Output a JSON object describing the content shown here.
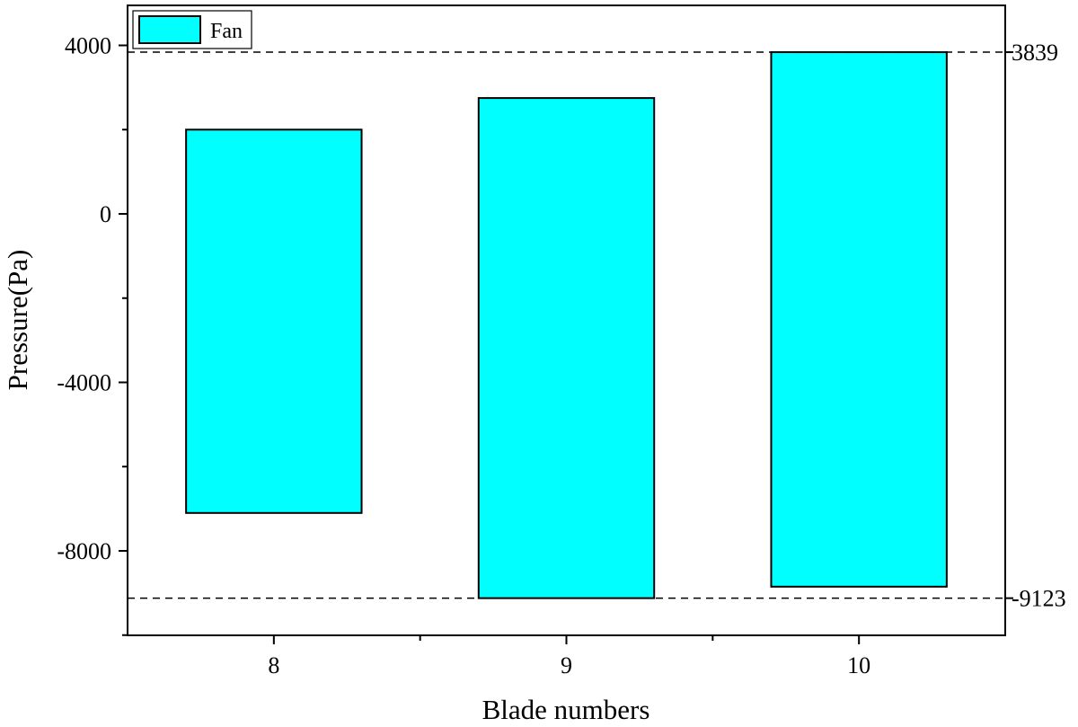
{
  "chart_data": {
    "type": "bar",
    "subtype": "floating-range",
    "categories": [
      "8",
      "9",
      "10"
    ],
    "series": [
      {
        "name": "Fan",
        "color": "#00FFFF",
        "ranges": [
          {
            "low": -7100,
            "high": 2000
          },
          {
            "low": -9123,
            "high": 2750
          },
          {
            "low": -8850,
            "high": 3839
          }
        ]
      }
    ],
    "xlabel": "Blade numbers",
    "ylabel": "Pressure(Pa)",
    "ylim": [
      -10000,
      5000
    ],
    "yticks": [
      4000,
      0,
      -4000,
      -8000
    ],
    "yticks_labels": [
      "4000",
      "0",
      "-4000",
      "-8000"
    ],
    "xtick_labels": [
      "8",
      "9",
      "10"
    ],
    "reference_lines": [
      {
        "value": 3839,
        "label": "3839"
      },
      {
        "value": -9123,
        "label": "-9123"
      }
    ],
    "grid": false,
    "legend_position": "top-left"
  }
}
